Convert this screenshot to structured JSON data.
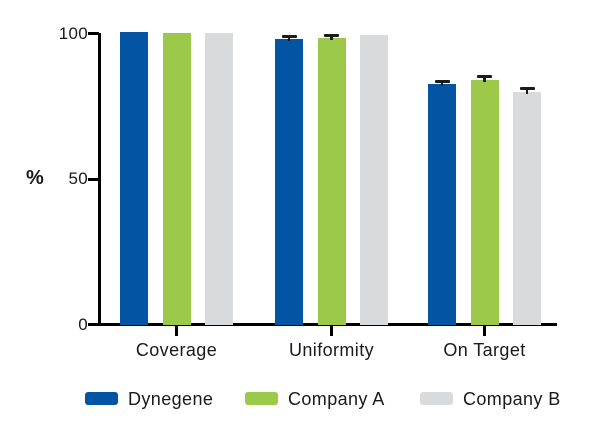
{
  "chart_data": {
    "type": "bar",
    "title": "",
    "xlabel": "",
    "ylabel": "%",
    "categories": [
      "Coverage",
      "Uniformity",
      "On Target"
    ],
    "series": [
      {
        "name": "Dynegene",
        "color": "#0454A4",
        "values": [
          100,
          97.5,
          82
        ],
        "errors": [
          0,
          0.5,
          0.7
        ]
      },
      {
        "name": "Company A",
        "color": "#9DC94A",
        "values": [
          99.5,
          98,
          83.5
        ],
        "errors": [
          0,
          0.5,
          0.7
        ]
      },
      {
        "name": "Company B",
        "color": "#D9DADC",
        "values": [
          99.7,
          99,
          79.5
        ],
        "errors": [
          0,
          0,
          0.7
        ]
      }
    ],
    "ylim": [
      0,
      100
    ],
    "yticks": [
      0,
      50,
      100
    ],
    "grid": false,
    "legend_position": "bottom",
    "axis_color": "#000000",
    "error_bar_color": "#1b1b1b",
    "text_color": "#1a1a1a"
  }
}
